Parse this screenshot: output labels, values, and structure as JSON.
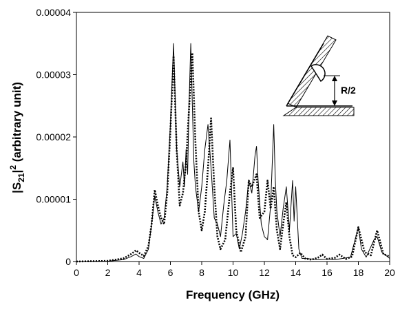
{
  "chart_data": {
    "type": "line",
    "title": "",
    "xlabel": "Frequency (GHz)",
    "ylabel_parts": {
      "pre": "|S",
      "sub": "21",
      "mid": "|",
      "sup": "2",
      "post": " (arbitrary unit)"
    },
    "xlim": [
      0,
      20
    ],
    "ylim": [
      0,
      4e-05
    ],
    "x_ticks": [
      "0",
      "2",
      "4",
      "6",
      "8",
      "10",
      "12",
      "14",
      "16",
      "18",
      "20"
    ],
    "y_ticks": [
      "0",
      "0.00001",
      "0.00002",
      "0.00003",
      "0.00004"
    ],
    "grid": false,
    "legend": "none",
    "inset_annotation": "R/2",
    "series": [
      {
        "style": "solid-thin",
        "color": "#000000",
        "x": [
          0,
          2,
          3,
          3.5,
          3.8,
          4.0,
          4.3,
          4.6,
          4.8,
          5.0,
          5.2,
          5.4,
          5.6,
          5.8,
          6.0,
          6.2,
          6.4,
          6.6,
          6.8,
          6.9,
          7.0,
          7.1,
          7.2,
          7.3,
          7.4,
          7.5,
          7.6,
          7.8,
          8.0,
          8.2,
          8.4,
          8.6,
          8.8,
          9.0,
          9.2,
          9.4,
          9.6,
          9.8,
          10.0,
          10.2,
          10.4,
          10.6,
          10.8,
          11.0,
          11.2,
          11.4,
          11.5,
          11.6,
          11.8,
          12.0,
          12.2,
          12.4,
          12.6,
          12.7,
          12.8,
          13.0,
          13.2,
          13.4,
          13.6,
          13.8,
          13.9,
          14.0,
          14.2,
          14.4,
          14.6,
          15.0,
          15.5,
          16.0,
          16.5,
          17.0,
          17.5,
          18.0,
          18.2,
          18.5,
          19.0,
          19.2,
          19.5,
          20.0
        ],
        "y": [
          0,
          5e-08,
          3e-07,
          8e-07,
          1.2e-06,
          8e-07,
          5e-07,
          2e-06,
          6e-06,
          1.05e-05,
          8e-06,
          6e-06,
          7e-06,
          1.2e-05,
          2.2e-05,
          3.5e-05,
          1.8e-05,
          1.2e-05,
          1.6e-05,
          1.2e-05,
          1.8e-05,
          1.4e-05,
          2.6e-05,
          3.5e-05,
          2.5e-05,
          1.6e-05,
          1.2e-05,
          8e-06,
          1.2e-05,
          1.8e-05,
          2.2e-05,
          1.5e-05,
          7e-06,
          6e-06,
          4e-06,
          9e-06,
          1.3e-05,
          1.95e-05,
          4e-06,
          4.5e-06,
          2e-06,
          4.5e-06,
          8e-06,
          1.3e-05,
          1.1e-05,
          1.7e-05,
          1.85e-05,
          1.3e-05,
          6e-06,
          4e-06,
          3.5e-06,
          9e-06,
          2.2e-05,
          1.3e-05,
          8e-06,
          4e-06,
          8.5e-06,
          1.2e-05,
          5e-06,
          1.3e-05,
          6.5e-06,
          1.2e-05,
          2e-06,
          5e-07,
          5e-07,
          4e-07,
          3e-07,
          4e-07,
          3e-07,
          5e-07,
          7e-07,
          5.5e-06,
          2e-06,
          7e-07,
          3.5e-06,
          4e-06,
          1.5e-06,
          5e-07
        ]
      },
      {
        "style": "dotted-thick",
        "color": "#000000",
        "x": [
          0,
          2,
          3,
          3.5,
          3.8,
          4.0,
          4.3,
          4.6,
          4.8,
          5.0,
          5.2,
          5.4,
          5.6,
          5.8,
          6.0,
          6.2,
          6.4,
          6.6,
          6.8,
          7.0,
          7.2,
          7.4,
          7.6,
          7.8,
          8.0,
          8.2,
          8.4,
          8.6,
          8.8,
          9.0,
          9.2,
          9.5,
          9.8,
          10.0,
          10.2,
          10.5,
          10.8,
          11.0,
          11.2,
          11.5,
          11.7,
          12.0,
          12.2,
          12.4,
          12.6,
          12.8,
          13.0,
          13.2,
          13.4,
          13.6,
          13.8,
          14.0,
          14.3,
          14.6,
          15.0,
          15.4,
          15.7,
          16.0,
          16.5,
          16.8,
          17.2,
          17.6,
          18.0,
          18.4,
          18.8,
          19.2,
          19.6,
          20.0
        ],
        "y": [
          0,
          1e-07,
          5e-07,
          1.2e-06,
          1.8e-06,
          1.4e-06,
          9e-07,
          2.5e-06,
          6e-06,
          1.15e-05,
          9e-06,
          7e-06,
          6e-06,
          1.1e-05,
          2.1e-05,
          3.3e-05,
          1.8e-05,
          9e-06,
          1.1e-05,
          1.6e-05,
          2.5e-05,
          3.35e-05,
          1.9e-05,
          8e-06,
          5e-06,
          8e-06,
          1.5e-05,
          2.3e-05,
          1.2e-05,
          4e-06,
          2e-06,
          3.5e-06,
          1.1e-05,
          1.5e-05,
          5e-06,
          1.5e-06,
          4e-06,
          1.3e-05,
          1.2e-05,
          1.4e-05,
          7e-06,
          8e-06,
          1.3e-05,
          8.5e-06,
          1.2e-05,
          5e-06,
          2e-06,
          6e-06,
          9.5e-06,
          4e-06,
          1e-06,
          7e-07,
          1.4e-06,
          5e-07,
          3e-07,
          6e-07,
          1.1e-06,
          4e-07,
          6e-07,
          1.1e-06,
          4e-07,
          8e-07,
          5.5e-06,
          1.5e-06,
          1e-06,
          5e-06,
          1.2e-06,
          8e-07
        ]
      }
    ]
  }
}
